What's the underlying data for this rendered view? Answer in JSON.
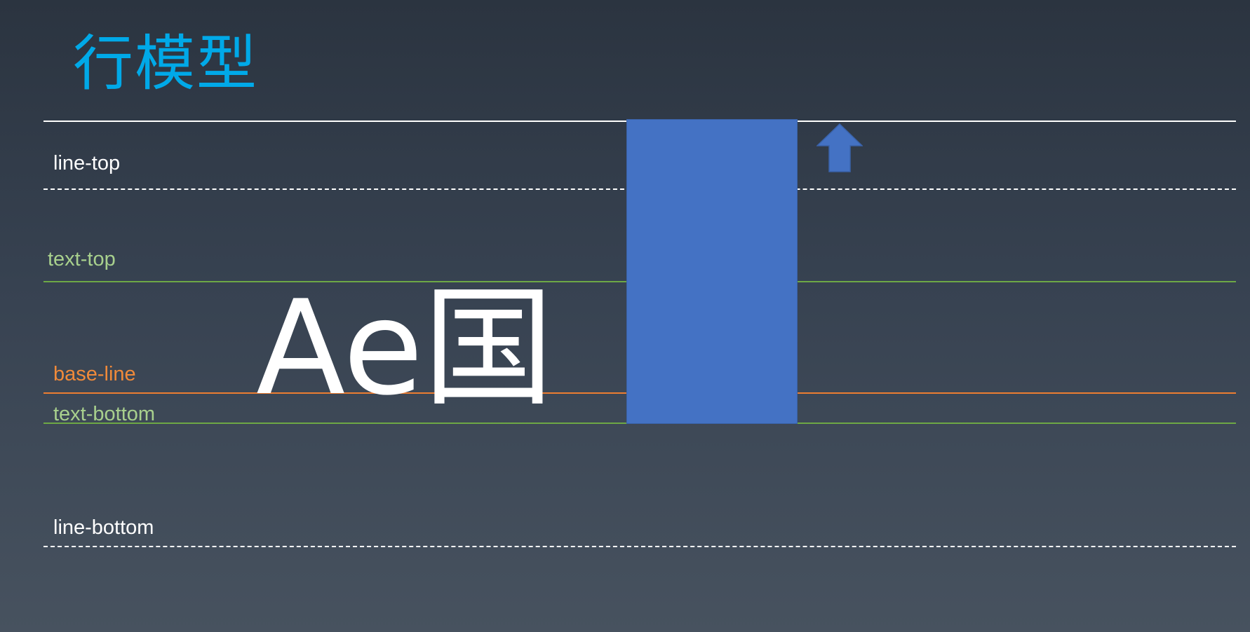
{
  "title": "行模型",
  "labels": {
    "line_top": "line-top",
    "text_top": "text-top",
    "base_line": "base-line",
    "text_bottom": "text-bottom",
    "line_bottom": "line-bottom"
  },
  "sample_text": "Ae国",
  "colors": {
    "title": "#00a9e8",
    "line_white": "#ffffff",
    "text_line_green": "#6ea845",
    "baseline_orange": "#ed7d31",
    "inline_box_blue": "#4472c4",
    "arrow_blue": "#4472c4"
  },
  "icons": {
    "arrow": "up-arrow-icon"
  }
}
